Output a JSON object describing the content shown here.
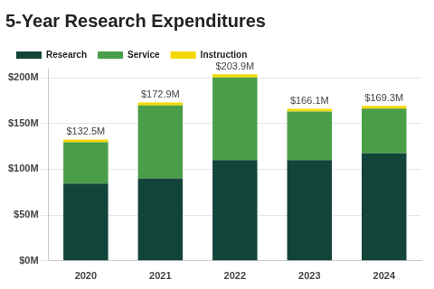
{
  "chart_data": {
    "type": "bar",
    "title": "5-Year Research Expenditures",
    "categories": [
      "2020",
      "2021",
      "2022",
      "2023",
      "2024"
    ],
    "series": [
      {
        "name": "Research",
        "color": "#12443a",
        "values": [
          84.5,
          90,
          110,
          110,
          117.5
        ]
      },
      {
        "name": "Service",
        "color": "#4a9e48",
        "values": [
          45,
          79.9,
          90.4,
          53.1,
          48.8
        ]
      },
      {
        "name": "Instruction",
        "color": "#f5d800",
        "values": [
          3,
          3,
          3.5,
          3,
          3
        ]
      }
    ],
    "totals": [
      132.5,
      172.9,
      203.9,
      166.1,
      169.3
    ],
    "total_labels": [
      "$132.5M",
      "$172.9M",
      "$203.9M",
      "$166.1M",
      "$169.3M"
    ],
    "stacked": true,
    "legend": "top-left",
    "grid": true,
    "ylim": [
      0,
      210
    ],
    "yticks": [
      {
        "value": 0,
        "label": "$0M"
      },
      {
        "value": 50,
        "label": "$50M"
      },
      {
        "value": 100,
        "label": "$100M"
      },
      {
        "value": 150,
        "label": "$150M"
      },
      {
        "value": 200,
        "label": "$200M"
      }
    ]
  }
}
